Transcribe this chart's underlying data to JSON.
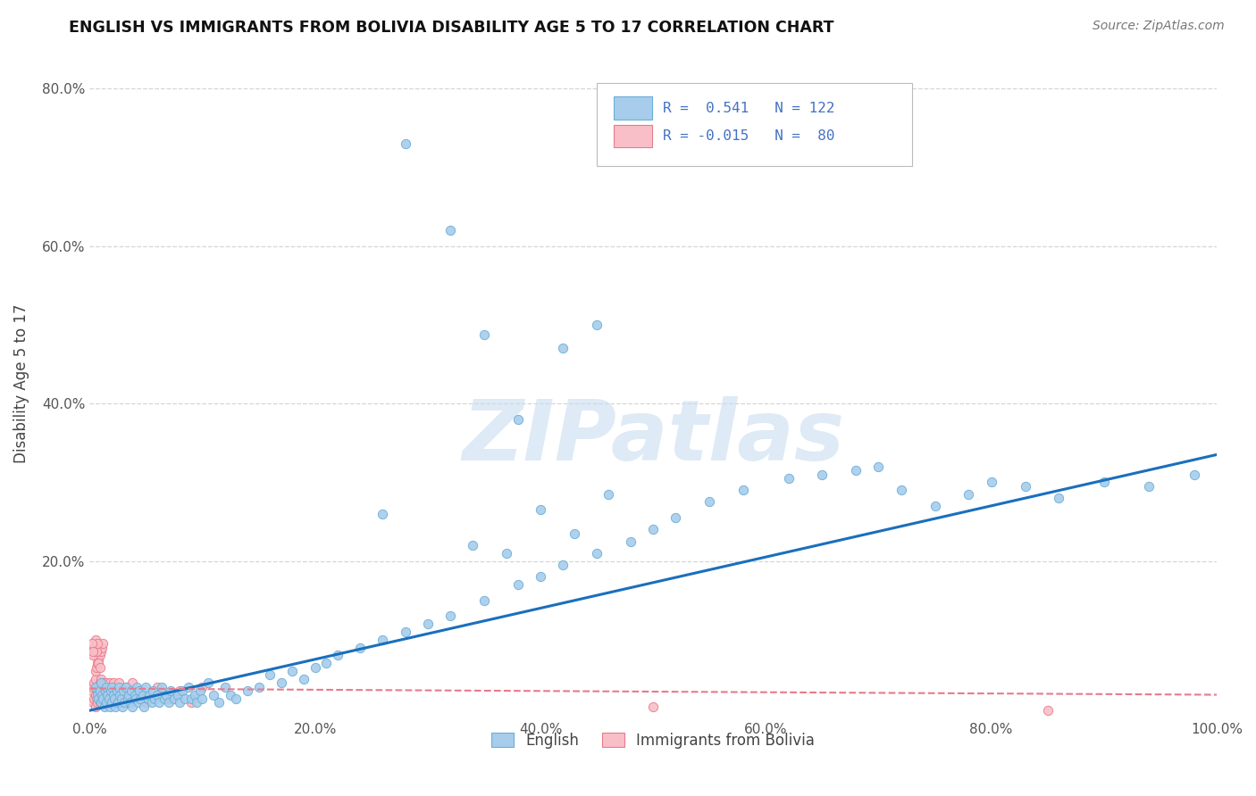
{
  "title": "ENGLISH VS IMMIGRANTS FROM BOLIVIA DISABILITY AGE 5 TO 17 CORRELATION CHART",
  "source": "Source: ZipAtlas.com",
  "ylabel": "Disability Age 5 to 17",
  "xlim": [
    0.0,
    1.0
  ],
  "ylim": [
    0.0,
    0.85
  ],
  "x_tick_labels": [
    "0.0%",
    "20.0%",
    "40.0%",
    "60.0%",
    "80.0%",
    "100.0%"
  ],
  "x_tick_vals": [
    0.0,
    0.2,
    0.4,
    0.6,
    0.8,
    1.0
  ],
  "y_tick_labels": [
    "20.0%",
    "40.0%",
    "60.0%",
    "80.0%"
  ],
  "y_tick_vals": [
    0.2,
    0.4,
    0.6,
    0.8
  ],
  "legend_label1": "English",
  "legend_label2": "Immigrants from Bolivia",
  "blue_color": "#a8ccec",
  "blue_edge": "#6aaed6",
  "pink_color": "#f9bfc8",
  "pink_edge": "#e87a8a",
  "line_blue": "#1a6fbd",
  "line_pink": "#e87a8a",
  "watermark_color": "#c8ddf0",
  "english_x": [
    0.005,
    0.007,
    0.008,
    0.009,
    0.01,
    0.01,
    0.011,
    0.012,
    0.013,
    0.014,
    0.015,
    0.015,
    0.016,
    0.017,
    0.018,
    0.019,
    0.02,
    0.02,
    0.021,
    0.022,
    0.023,
    0.024,
    0.025,
    0.026,
    0.027,
    0.028,
    0.029,
    0.03,
    0.031,
    0.032,
    0.034,
    0.035,
    0.036,
    0.037,
    0.038,
    0.04,
    0.041,
    0.042,
    0.043,
    0.044,
    0.045,
    0.047,
    0.048,
    0.05,
    0.052,
    0.053,
    0.055,
    0.056,
    0.058,
    0.06,
    0.062,
    0.064,
    0.066,
    0.068,
    0.07,
    0.072,
    0.075,
    0.078,
    0.08,
    0.082,
    0.085,
    0.088,
    0.09,
    0.093,
    0.095,
    0.098,
    0.1,
    0.105,
    0.11,
    0.115,
    0.12,
    0.125,
    0.13,
    0.14,
    0.15,
    0.16,
    0.17,
    0.18,
    0.19,
    0.2,
    0.21,
    0.22,
    0.24,
    0.26,
    0.28,
    0.3,
    0.32,
    0.35,
    0.38,
    0.4,
    0.42,
    0.45,
    0.48,
    0.5,
    0.52,
    0.55,
    0.58,
    0.62,
    0.65,
    0.68,
    0.7,
    0.72,
    0.75,
    0.78,
    0.8,
    0.83,
    0.86,
    0.9,
    0.94,
    0.98,
    0.35,
    0.38,
    0.42,
    0.45,
    0.32,
    0.28,
    0.26,
    0.34,
    0.37,
    0.4,
    0.43,
    0.46
  ],
  "english_y": [
    0.04,
    0.03,
    0.025,
    0.035,
    0.02,
    0.045,
    0.03,
    0.025,
    0.015,
    0.035,
    0.02,
    0.04,
    0.03,
    0.025,
    0.015,
    0.035,
    0.02,
    0.04,
    0.03,
    0.025,
    0.015,
    0.035,
    0.02,
    0.04,
    0.03,
    0.025,
    0.015,
    0.035,
    0.02,
    0.04,
    0.025,
    0.03,
    0.02,
    0.035,
    0.015,
    0.03,
    0.025,
    0.04,
    0.02,
    0.035,
    0.025,
    0.03,
    0.015,
    0.04,
    0.025,
    0.03,
    0.02,
    0.035,
    0.025,
    0.03,
    0.02,
    0.04,
    0.025,
    0.03,
    0.02,
    0.035,
    0.025,
    0.03,
    0.02,
    0.035,
    0.025,
    0.04,
    0.025,
    0.03,
    0.02,
    0.035,
    0.025,
    0.045,
    0.03,
    0.02,
    0.04,
    0.03,
    0.025,
    0.035,
    0.04,
    0.055,
    0.045,
    0.06,
    0.05,
    0.065,
    0.07,
    0.08,
    0.09,
    0.1,
    0.11,
    0.12,
    0.13,
    0.15,
    0.17,
    0.18,
    0.195,
    0.21,
    0.225,
    0.24,
    0.255,
    0.275,
    0.29,
    0.305,
    0.31,
    0.315,
    0.32,
    0.29,
    0.27,
    0.285,
    0.3,
    0.295,
    0.28,
    0.3,
    0.295,
    0.31,
    0.487,
    0.38,
    0.47,
    0.5,
    0.62,
    0.73,
    0.26,
    0.22,
    0.21,
    0.265,
    0.235,
    0.285
  ],
  "bolivia_x": [
    0.002,
    0.003,
    0.003,
    0.004,
    0.004,
    0.005,
    0.005,
    0.005,
    0.006,
    0.006,
    0.007,
    0.007,
    0.008,
    0.008,
    0.009,
    0.009,
    0.01,
    0.01,
    0.01,
    0.011,
    0.011,
    0.012,
    0.012,
    0.013,
    0.013,
    0.014,
    0.014,
    0.015,
    0.015,
    0.016,
    0.016,
    0.017,
    0.017,
    0.018,
    0.018,
    0.019,
    0.019,
    0.02,
    0.02,
    0.021,
    0.021,
    0.022,
    0.022,
    0.023,
    0.024,
    0.025,
    0.026,
    0.027,
    0.028,
    0.03,
    0.032,
    0.035,
    0.038,
    0.04,
    0.045,
    0.05,
    0.06,
    0.07,
    0.08,
    0.09,
    0.1,
    0.005,
    0.006,
    0.007,
    0.008,
    0.009,
    0.01,
    0.011,
    0.012,
    0.5,
    0.85,
    0.003,
    0.004,
    0.005,
    0.006,
    0.007,
    0.008,
    0.009,
    0.002,
    0.003
  ],
  "bolivia_y": [
    0.035,
    0.02,
    0.04,
    0.025,
    0.045,
    0.03,
    0.015,
    0.05,
    0.025,
    0.04,
    0.02,
    0.035,
    0.025,
    0.04,
    0.02,
    0.045,
    0.025,
    0.035,
    0.05,
    0.02,
    0.04,
    0.025,
    0.045,
    0.02,
    0.035,
    0.025,
    0.04,
    0.02,
    0.045,
    0.025,
    0.035,
    0.02,
    0.04,
    0.025,
    0.045,
    0.02,
    0.035,
    0.025,
    0.04,
    0.02,
    0.045,
    0.025,
    0.035,
    0.02,
    0.04,
    0.025,
    0.045,
    0.02,
    0.035,
    0.025,
    0.04,
    0.02,
    0.045,
    0.025,
    0.035,
    0.02,
    0.04,
    0.025,
    0.035,
    0.02,
    0.04,
    0.06,
    0.065,
    0.07,
    0.075,
    0.08,
    0.085,
    0.09,
    0.095,
    0.015,
    0.01,
    0.08,
    0.09,
    0.1,
    0.085,
    0.095,
    0.07,
    0.065,
    0.095,
    0.085
  ],
  "blue_line_x": [
    0.0,
    1.0
  ],
  "blue_line_y": [
    0.01,
    0.335
  ],
  "pink_line_x": [
    0.0,
    1.0
  ],
  "pink_line_y": [
    0.038,
    0.03
  ]
}
